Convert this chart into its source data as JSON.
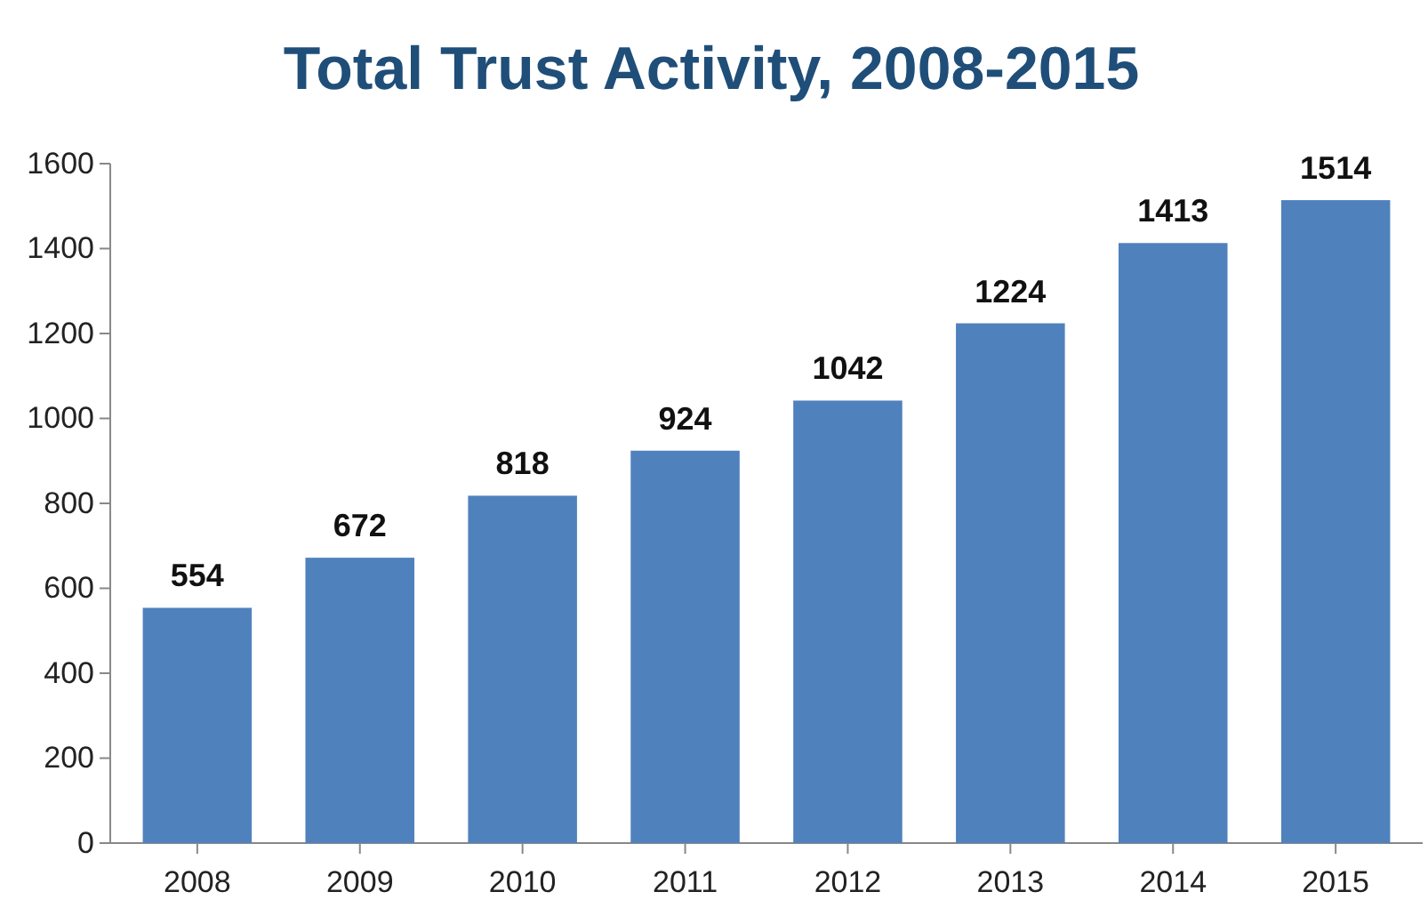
{
  "chart_data": {
    "type": "bar",
    "title": "Total Trust Activity, 2008-2015",
    "categories": [
      "2008",
      "2009",
      "2010",
      "2011",
      "2012",
      "2013",
      "2014",
      "2015"
    ],
    "values": [
      554,
      672,
      818,
      924,
      1042,
      1224,
      1413,
      1514
    ],
    "color": "#4f81bd",
    "ylim": [
      0,
      1600
    ],
    "yticks": [
      0,
      200,
      400,
      600,
      800,
      1000,
      1200,
      1400,
      1600
    ],
    "data_labels": true
  }
}
